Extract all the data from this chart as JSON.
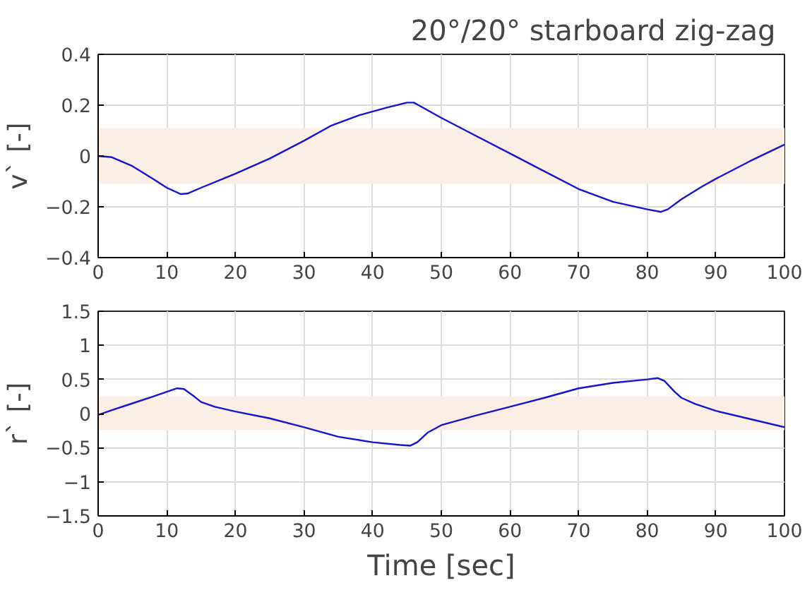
{
  "chart_data": [
    {
      "type": "line",
      "title": "20°/20° starboard  zig-zag",
      "ylabel": "v` [-]",
      "xlim": [
        0,
        100
      ],
      "xticks": [
        0,
        10,
        20,
        30,
        40,
        50,
        60,
        70,
        80,
        90,
        100
      ],
      "ylim": [
        -0.4,
        0.4
      ],
      "yticks": [
        -0.4,
        -0.2,
        0,
        0.2,
        0.4
      ],
      "grid": true,
      "bands": [
        {
          "axis": "y",
          "from": -0.11,
          "to": 0.11,
          "color": "#fbeee4"
        }
      ],
      "series": [
        {
          "color": "#1414d2",
          "x": [
            0,
            2,
            5,
            8,
            10,
            12,
            13,
            15,
            20,
            25,
            30,
            34,
            38,
            42,
            45,
            46,
            47,
            50,
            55,
            60,
            65,
            70,
            75,
            80,
            82,
            83,
            85,
            88,
            90,
            95,
            100
          ],
          "values": [
            0,
            -0.005,
            -0.04,
            -0.09,
            -0.125,
            -0.15,
            -0.148,
            -0.125,
            -0.07,
            -0.01,
            0.06,
            0.12,
            0.16,
            0.19,
            0.21,
            0.21,
            0.195,
            0.15,
            0.08,
            0.01,
            -0.06,
            -0.13,
            -0.18,
            -0.21,
            -0.22,
            -0.21,
            -0.17,
            -0.12,
            -0.09,
            -0.02,
            0.045
          ]
        }
      ]
    },
    {
      "type": "line",
      "xlabel": "Time [sec]",
      "ylabel": "r` [-]",
      "xlim": [
        0,
        100
      ],
      "xticks": [
        0,
        10,
        20,
        30,
        40,
        50,
        60,
        70,
        80,
        90,
        100
      ],
      "ylim": [
        -1.5,
        1.5
      ],
      "yticks": [
        -1.5,
        -1,
        -0.5,
        0,
        0.5,
        1,
        1.5
      ],
      "grid": true,
      "bands": [
        {
          "axis": "y",
          "from": -0.24,
          "to": 0.25,
          "color": "#fbeee4"
        }
      ],
      "series": [
        {
          "color": "#1414d2",
          "x": [
            0,
            2,
            5,
            8,
            10,
            11.5,
            12.5,
            14,
            15,
            17,
            20,
            25,
            30,
            35,
            40,
            44,
            45.5,
            46.5,
            48,
            50,
            55,
            60,
            65,
            70,
            75,
            80,
            81.5,
            82.5,
            84,
            85,
            87,
            90,
            95,
            100
          ],
          "values": [
            -0.02,
            0.05,
            0.15,
            0.25,
            0.32,
            0.37,
            0.36,
            0.25,
            0.17,
            0.1,
            0.03,
            -0.07,
            -0.2,
            -0.34,
            -0.42,
            -0.46,
            -0.47,
            -0.42,
            -0.28,
            -0.17,
            -0.03,
            0.1,
            0.23,
            0.37,
            0.45,
            0.5,
            0.52,
            0.48,
            0.32,
            0.23,
            0.14,
            0.04,
            -0.08,
            -0.2
          ]
        }
      ]
    }
  ]
}
